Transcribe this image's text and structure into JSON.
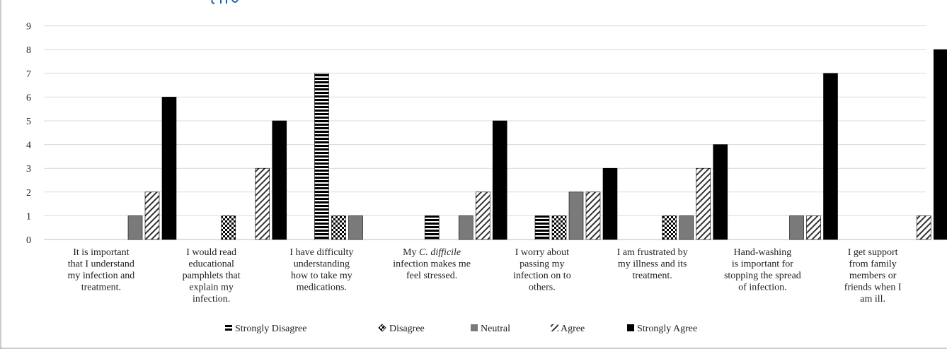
{
  "chart_data": {
    "type": "bar",
    "title": "",
    "xlabel": "",
    "ylabel": "",
    "ylim": [
      0,
      9
    ],
    "yticks": [
      0,
      1,
      2,
      3,
      4,
      5,
      6,
      7,
      8,
      9
    ],
    "grid": true,
    "legend_position": "bottom",
    "categories": [
      [
        "It is important",
        "that I understand",
        "my infection and",
        "treatment."
      ],
      [
        "I would read",
        "educational",
        "pamphlets that",
        "explain my",
        "infection."
      ],
      [
        "I have difficulty",
        "understanding",
        "how to take my",
        "medications."
      ],
      [
        "My C. difficile",
        "infection makes me",
        "feel stressed."
      ],
      [
        "I worry about",
        "passing my",
        "infection on to",
        "others."
      ],
      [
        "I am frustrated by",
        "my illness and its",
        "treatment."
      ],
      [
        "Hand-washing",
        "is important for",
        "stopping the spread",
        "of infection."
      ],
      [
        "I get support",
        "from family",
        "members or",
        "friends when I",
        "am ill."
      ]
    ],
    "series": [
      {
        "name": "Strongly Disagree",
        "pattern": "hstripe",
        "values": [
          0,
          0,
          7,
          1,
          1,
          0,
          0,
          0
        ]
      },
      {
        "name": "Disagree",
        "pattern": "checker",
        "values": [
          0,
          1,
          1,
          0,
          1,
          1,
          0,
          0
        ]
      },
      {
        "name": "Neutral",
        "pattern": "solid-gray",
        "values": [
          1,
          0,
          1,
          1,
          2,
          1,
          1,
          0
        ]
      },
      {
        "name": "Agree",
        "pattern": "diagonal",
        "values": [
          2,
          3,
          0,
          2,
          2,
          3,
          1,
          1
        ]
      },
      {
        "name": "Strongly Agree",
        "pattern": "solid-black",
        "values": [
          6,
          5,
          0,
          5,
          3,
          4,
          7,
          8
        ]
      }
    ],
    "colors": {
      "gray": "#7a7a7a",
      "black": "#000000",
      "grid": "#d9d9d9",
      "axis": "#bfbfbf",
      "title_fragment": "#1f5fa8"
    }
  }
}
